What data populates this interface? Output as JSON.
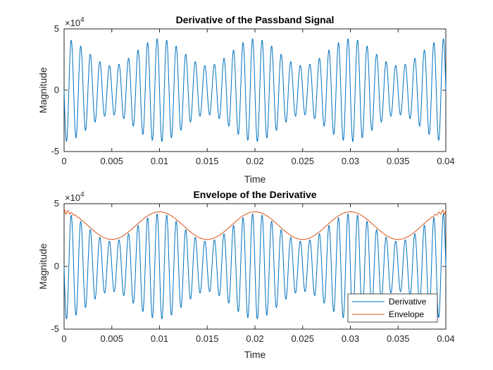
{
  "chart_data": [
    {
      "type": "line",
      "title": "Derivative of the Passband Signal",
      "xlabel": "Time",
      "ylabel": "Magnitude",
      "xlim": [
        0,
        0.04
      ],
      "ylim": [
        -5,
        5
      ],
      "y_exponent_label": "×10",
      "y_exponent_power": "4",
      "xticks": [
        "0",
        "0.005",
        "0.01",
        "0.015",
        "0.02",
        "0.025",
        "0.03",
        "0.035",
        "0.04"
      ],
      "yticks": [
        "5",
        "0",
        "-5"
      ],
      "signal": {
        "description": "amplitude-modulated sinusoid, envelope 3.1 + 1.1*cos(2*pi*100*t)",
        "carrier_hz": 1000,
        "envelope_mean": 3.1,
        "envelope_swing": 1.1,
        "modulation_hz": 100,
        "y_units_scale": 10000
      },
      "series": [
        {
          "name": "Derivative",
          "color": "#0072BD"
        }
      ]
    },
    {
      "type": "line",
      "title": "Envelope of the Derivative",
      "xlabel": "Time",
      "ylabel": "Magnitude",
      "xlim": [
        0,
        0.04
      ],
      "ylim": [
        -5,
        5
      ],
      "y_exponent_label": "×10",
      "y_exponent_power": "4",
      "xticks": [
        "0",
        "0.005",
        "0.01",
        "0.015",
        "0.02",
        "0.025",
        "0.03",
        "0.035",
        "0.04"
      ],
      "yticks": [
        "5",
        "0",
        "-5"
      ],
      "signal": {
        "carrier_hz": 1000,
        "envelope_mean": 3.1,
        "envelope_swing": 1.1,
        "modulation_hz": 100,
        "y_units_scale": 10000
      },
      "series": [
        {
          "name": "Derivative",
          "color": "#0072BD"
        },
        {
          "name": "Envelope",
          "color": "#D95319"
        }
      ],
      "legend": {
        "placement": "bottom-right",
        "entries": [
          "Derivative",
          "Envelope"
        ]
      }
    }
  ]
}
